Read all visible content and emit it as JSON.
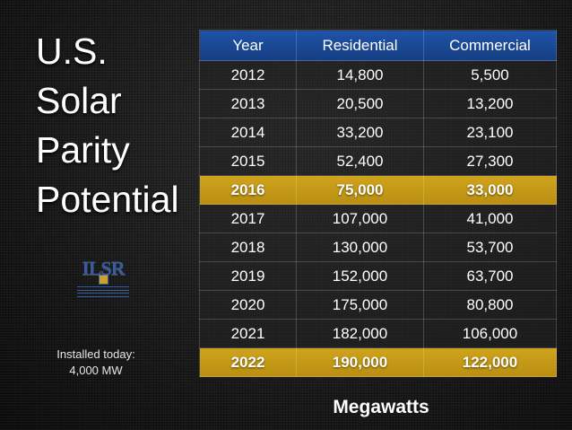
{
  "slide": {
    "title_lines": [
      "U.S.",
      "Solar",
      "Parity",
      "Potential"
    ],
    "installed_note": [
      "Installed today:",
      "4,000 MW"
    ],
    "unit_label": "Megawatts",
    "logo": {
      "mark_text": "ILSR",
      "colors": {
        "mark": "#3a5c9e",
        "crest": "#c9a227"
      }
    }
  },
  "table": {
    "headers": [
      "Year",
      "Residential",
      "Commercial"
    ],
    "rows": [
      {
        "year": "2012",
        "residential": "14,800",
        "commercial": "5,500",
        "highlight": false
      },
      {
        "year": "2013",
        "residential": "20,500",
        "commercial": "13,200",
        "highlight": false
      },
      {
        "year": "2014",
        "residential": "33,200",
        "commercial": "23,100",
        "highlight": false
      },
      {
        "year": "2015",
        "residential": "52,400",
        "commercial": "27,300",
        "highlight": false
      },
      {
        "year": "2016",
        "residential": "75,000",
        "commercial": "33,000",
        "highlight": true
      },
      {
        "year": "2017",
        "residential": "107,000",
        "commercial": "41,000",
        "highlight": false
      },
      {
        "year": "2018",
        "residential": "130,000",
        "commercial": "53,700",
        "highlight": false
      },
      {
        "year": "2019",
        "residential": "152,000",
        "commercial": "63,700",
        "highlight": false
      },
      {
        "year": "2020",
        "residential": "175,000",
        "commercial": "80,800",
        "highlight": false
      },
      {
        "year": "2021",
        "residential": "182,000",
        "commercial": "106,000",
        "highlight": false
      },
      {
        "year": "2022",
        "residential": "190,000",
        "commercial": "122,000",
        "highlight": true
      }
    ],
    "colors": {
      "header": "#1f54a8",
      "highlight_row": "#cfa31b"
    }
  }
}
